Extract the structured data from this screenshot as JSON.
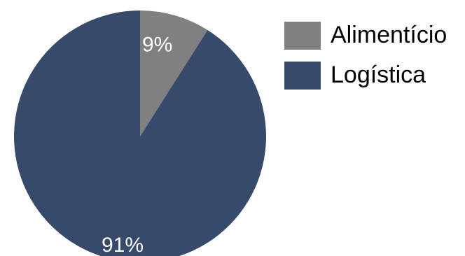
{
  "chart_data": {
    "type": "pie",
    "categories": [
      "Alimentício",
      "Logística"
    ],
    "values": [
      9,
      91
    ],
    "labels": [
      "9%",
      "91%"
    ],
    "colors": [
      "#808080",
      "#374a6b"
    ],
    "start": "12 o'clock",
    "direction": "clockwise",
    "legend": "right"
  }
}
